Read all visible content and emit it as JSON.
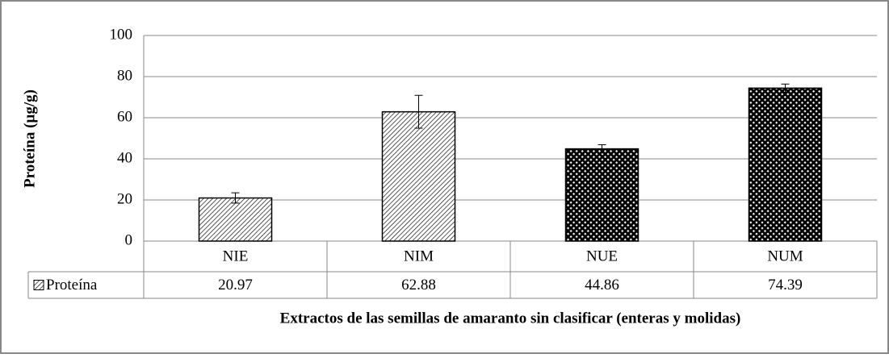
{
  "chart_data": {
    "type": "bar",
    "y_label": "Proteína (µg/g)",
    "x_label": "Extractos de las semillas de amaranto sin clasificar (enteras y molidas)",
    "categories": [
      "NIE",
      "NIM",
      "NUE",
      "NUM"
    ],
    "series": [
      {
        "name": "Proteína",
        "color": "#000000",
        "values": [
          20.97,
          62.88,
          44.86,
          74.39
        ],
        "errors": [
          2.5,
          8,
          2,
          2
        ],
        "patterns": [
          "diagonal",
          "diagonal",
          "cross",
          "cross"
        ]
      }
    ],
    "ylim": [
      0,
      100
    ],
    "yticks": [
      0,
      20,
      40,
      60,
      80,
      100
    ],
    "grid": true,
    "data_table": true
  }
}
